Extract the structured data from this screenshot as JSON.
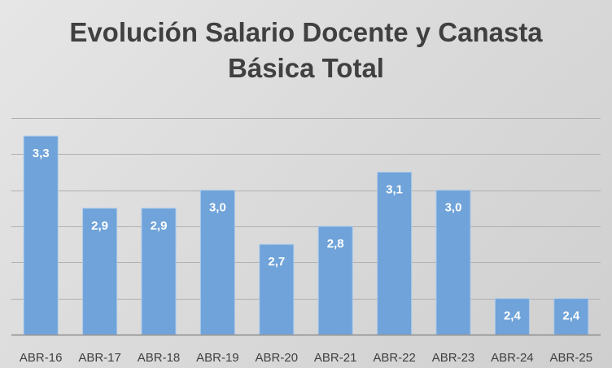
{
  "chart_data": {
    "type": "bar",
    "title_lines": [
      "Evolución Salario Docente y Canasta",
      "Básica Total"
    ],
    "categories": [
      "ABR-16",
      "ABR-17",
      "ABR-18",
      "ABR-19",
      "ABR-20",
      "ABR-21",
      "ABR-22",
      "ABR-23",
      "ABR-24",
      "ABR-25"
    ],
    "values": [
      3.3,
      2.9,
      2.9,
      3.0,
      2.7,
      2.8,
      3.1,
      3.0,
      2.4,
      2.4
    ],
    "value_labels": [
      "3,3",
      "2,9",
      "2,9",
      "3,0",
      "2,7",
      "2,8",
      "3,1",
      "3,0",
      "2,4",
      "2,4"
    ],
    "ylim": [
      2.2,
      3.4
    ],
    "y_gridlines": [
      2.4,
      2.6,
      2.8,
      3.0,
      3.2,
      3.4
    ],
    "y_tick_labels_shown": false,
    "grid": true,
    "legend": "none",
    "colors": {
      "bar_fill": "#6fa3d9",
      "bar_edge": "#a9c8ea",
      "gridline": "#b0b0b0",
      "axis": "#8c8c8c",
      "value_label": "#ffffff",
      "category_label": "#404040",
      "title": "#404040"
    }
  }
}
